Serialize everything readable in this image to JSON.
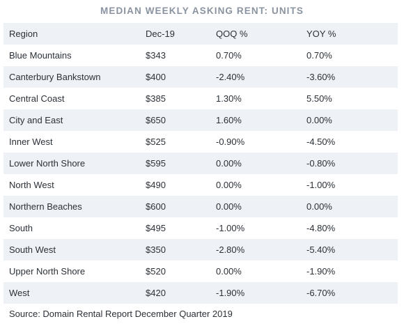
{
  "title": "MEDIAN WEEKLY ASKING RENT: UNITS",
  "table": {
    "headers": [
      "Region",
      "Dec-19",
      "QOQ %",
      "YOY %"
    ],
    "rows": [
      [
        "Blue Mountains",
        "$343",
        "0.70%",
        "0.70%"
      ],
      [
        "Canterbury Bankstown",
        "$400",
        "-2.40%",
        "-3.60%"
      ],
      [
        "Central Coast",
        "$385",
        "1.30%",
        "5.50%"
      ],
      [
        "City and East",
        "$650",
        "1.60%",
        "0.00%"
      ],
      [
        "Inner West",
        "$525",
        "-0.90%",
        "-4.50%"
      ],
      [
        "Lower North Shore",
        "$595",
        "0.00%",
        "-0.80%"
      ],
      [
        "North West",
        "$490",
        "0.00%",
        "-1.00%"
      ],
      [
        "Northern Beaches",
        "$600",
        "0.00%",
        "0.00%"
      ],
      [
        "South",
        "$495",
        "-1.00%",
        "-4.80%"
      ],
      [
        "South West",
        "$350",
        "-2.80%",
        "-5.40%"
      ],
      [
        "Upper North Shore",
        "$520",
        "0.00%",
        "-1.90%"
      ],
      [
        "West",
        "$420",
        "-1.90%",
        "-6.70%"
      ]
    ]
  },
  "source": "Source: Domain Rental Report December Quarter 2019",
  "colors": {
    "title": "#8a93a0",
    "stripe": "#eef1f6",
    "text": "#2b3138"
  }
}
